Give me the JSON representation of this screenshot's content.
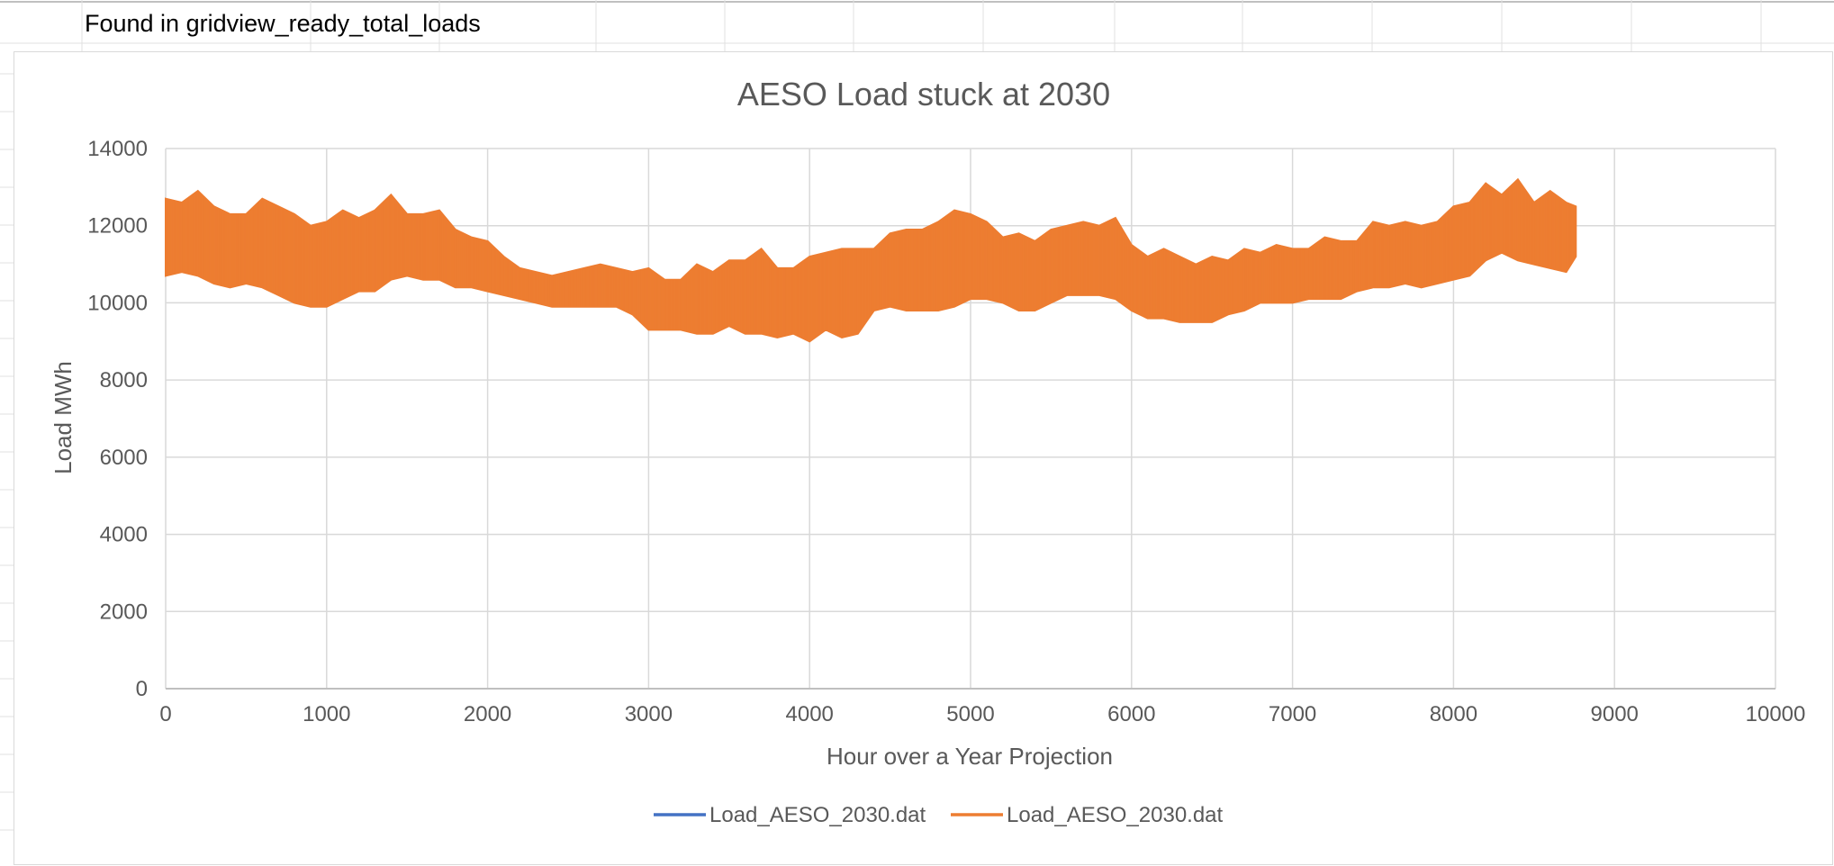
{
  "sheet": {
    "note": "Found in gridview_ready_total_loads"
  },
  "colors": {
    "series_blue": "#4472c4",
    "series_orange": "#ed7d31",
    "gridline": "#d9d9d9",
    "text": "#595959"
  },
  "chart_data": {
    "type": "line",
    "title": "AESO Load stuck at 2030",
    "xlabel": "Hour over a Year Projection",
    "ylabel": "Load MWh",
    "xlim": [
      0,
      10000
    ],
    "ylim": [
      0,
      14000
    ],
    "x_ticks": [
      0,
      1000,
      2000,
      3000,
      4000,
      5000,
      6000,
      7000,
      8000,
      9000,
      10000
    ],
    "y_ticks": [
      0,
      2000,
      4000,
      6000,
      8000,
      10000,
      12000,
      14000
    ],
    "grid": true,
    "legend_position": "bottom",
    "series": [
      {
        "name": "Load_AESO_2030.dat",
        "color": "#4472c4",
        "x": [],
        "y": []
      },
      {
        "name": "Load_AESO_2030.dat",
        "color": "#ed7d31",
        "x": [
          0,
          100,
          200,
          300,
          400,
          500,
          600,
          700,
          800,
          900,
          1000,
          1100,
          1200,
          1300,
          1400,
          1500,
          1600,
          1700,
          1800,
          1900,
          2000,
          2100,
          2200,
          2300,
          2400,
          2500,
          2600,
          2700,
          2800,
          2900,
          3000,
          3100,
          3200,
          3300,
          3400,
          3500,
          3600,
          3700,
          3800,
          3900,
          4000,
          4100,
          4200,
          4300,
          4400,
          4500,
          4600,
          4700,
          4800,
          4900,
          5000,
          5100,
          5200,
          5300,
          5400,
          5500,
          5600,
          5700,
          5800,
          5900,
          6000,
          6100,
          6200,
          6300,
          6400,
          6500,
          6600,
          6700,
          6800,
          6900,
          7000,
          7100,
          7200,
          7300,
          7400,
          7500,
          7600,
          7700,
          7800,
          7900,
          8000,
          8100,
          8200,
          8300,
          8400,
          8500,
          8600,
          8700,
          8760
        ],
        "y_min": [
          10700,
          10800,
          10700,
          10500,
          10400,
          10500,
          10400,
          10200,
          10000,
          9900,
          9900,
          10100,
          10300,
          10300,
          10600,
          10700,
          10600,
          10600,
          10400,
          10400,
          10300,
          10200,
          10100,
          10000,
          9900,
          9900,
          9900,
          9900,
          9900,
          9700,
          9300,
          9300,
          9300,
          9200,
          9200,
          9400,
          9200,
          9200,
          9100,
          9200,
          9000,
          9300,
          9100,
          9200,
          9800,
          9900,
          9800,
          9800,
          9800,
          9900,
          10100,
          10100,
          10000,
          9800,
          9800,
          10000,
          10200,
          10200,
          10200,
          10100,
          9800,
          9600,
          9600,
          9500,
          9500,
          9500,
          9700,
          9800,
          10000,
          10000,
          10000,
          10100,
          10100,
          10100,
          10300,
          10400,
          10400,
          10500,
          10400,
          10500,
          10600,
          10700,
          11100,
          11300,
          11100,
          11000,
          10900,
          10800,
          11200
        ],
        "y_max": [
          12700,
          12600,
          12900,
          12500,
          12300,
          12300,
          12700,
          12500,
          12300,
          12000,
          12100,
          12400,
          12200,
          12400,
          12800,
          12300,
          12300,
          12400,
          11900,
          11700,
          11600,
          11200,
          10900,
          10800,
          10700,
          10800,
          10900,
          11000,
          10900,
          10800,
          10900,
          10600,
          10600,
          11000,
          10800,
          11100,
          11100,
          11400,
          10900,
          10900,
          11200,
          11300,
          11400,
          11400,
          11400,
          11800,
          11900,
          11900,
          12100,
          12400,
          12300,
          12100,
          11700,
          11800,
          11600,
          11900,
          12000,
          12100,
          12000,
          12200,
          11500,
          11200,
          11400,
          11200,
          11000,
          11200,
          11100,
          11400,
          11300,
          11500,
          11400,
          11400,
          11700,
          11600,
          11600,
          12100,
          12000,
          12100,
          12000,
          12100,
          12500,
          12600,
          13100,
          12800,
          13200,
          12600,
          12900,
          12600,
          12500
        ]
      }
    ]
  }
}
